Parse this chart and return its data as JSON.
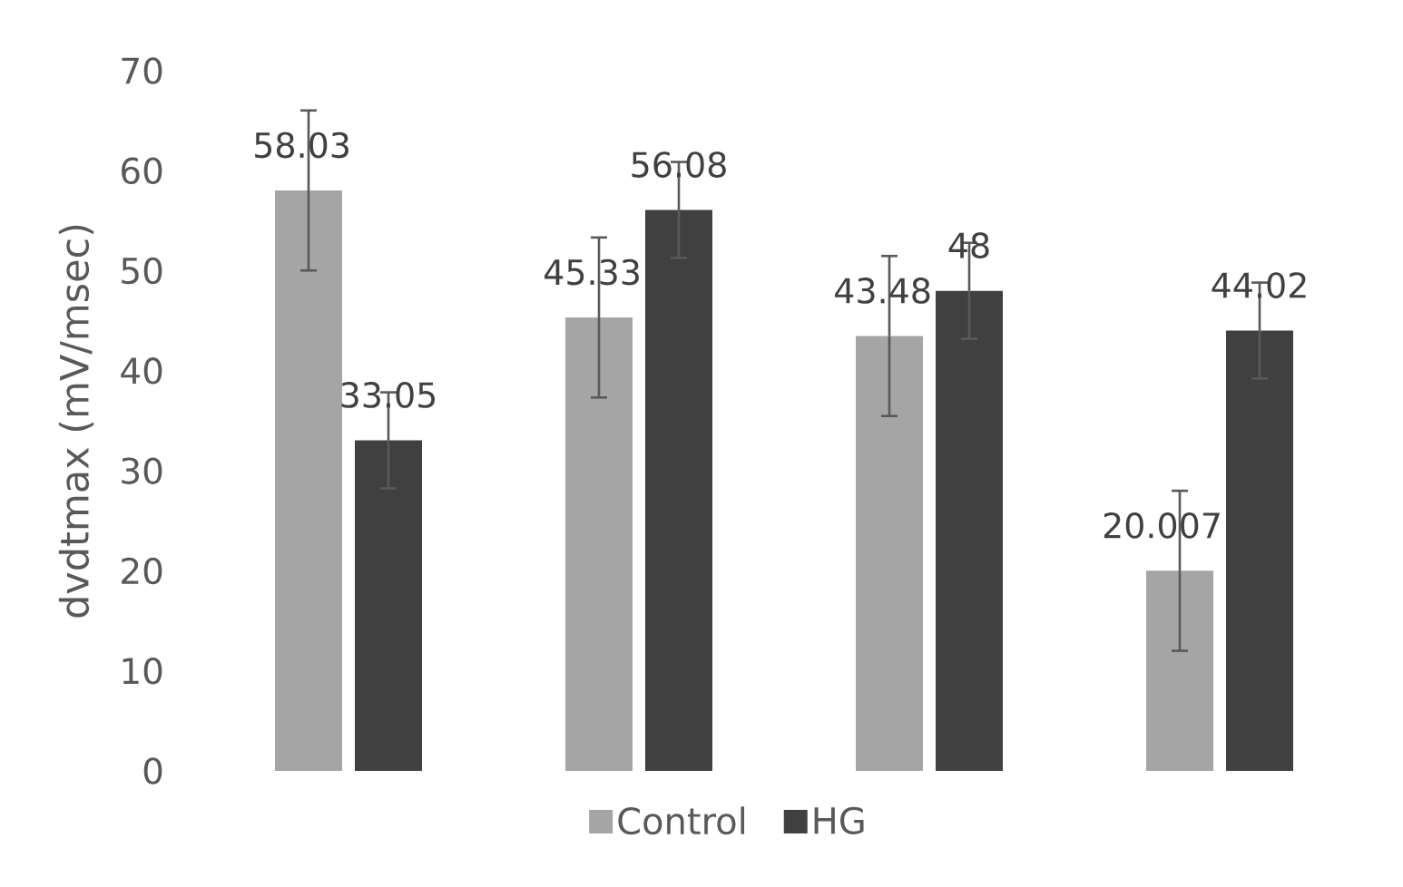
{
  "chart_data": {
    "type": "bar",
    "ylabel": "dvdtmax (mV/msec)",
    "categories": [
      null,
      null,
      null,
      null
    ],
    "series": [
      {
        "name": "Control",
        "color": "#a5a5a5",
        "values": [
          58.03,
          45.33,
          43.48,
          20.007
        ],
        "errors": [
          8,
          8,
          8,
          8
        ]
      },
      {
        "name": "HG",
        "color": "#404040",
        "values": [
          33.05,
          56.08,
          48,
          44.02
        ],
        "errors": [
          4.8,
          4.8,
          4.8,
          4.8
        ]
      }
    ],
    "ylim": [
      0,
      70
    ],
    "yticks": [
      0,
      10,
      20,
      30,
      40,
      50,
      60,
      70
    ],
    "data_labels": true,
    "legend": "bottom"
  }
}
